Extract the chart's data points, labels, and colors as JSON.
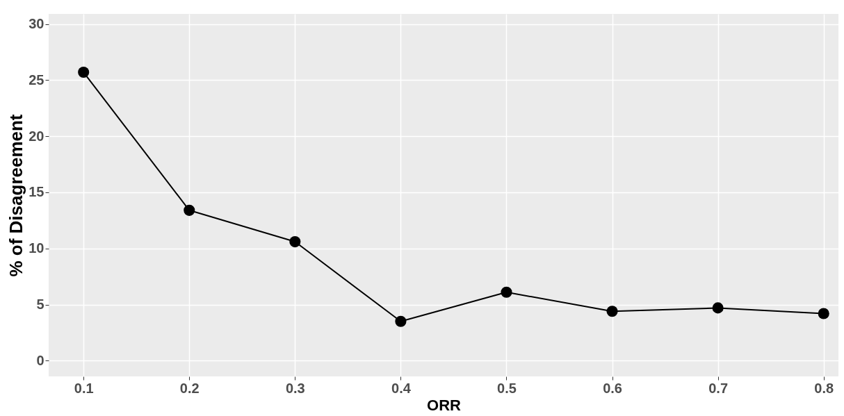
{
  "chart_data": {
    "type": "line",
    "xlabel": "ORR",
    "ylabel": "% of Disagreement",
    "x": [
      0.1,
      0.2,
      0.3,
      0.4,
      0.5,
      0.6,
      0.7,
      0.8
    ],
    "series": [
      {
        "color": "#000000",
        "values": [
          25.7,
          13.4,
          10.6,
          3.5,
          6.1,
          4.4,
          4.7,
          4.2
        ]
      }
    ],
    "xlim": [
      0.067,
      0.814
    ],
    "ylim": [
      -1.4,
      30.9
    ],
    "xticks": [
      0.1,
      0.2,
      0.3,
      0.4,
      0.5,
      0.6,
      0.7,
      0.8
    ],
    "yticks": [
      0,
      5,
      10,
      15,
      20,
      25,
      30
    ],
    "grid": true,
    "marker": "circle",
    "line_style": "solid",
    "legend": false
  }
}
